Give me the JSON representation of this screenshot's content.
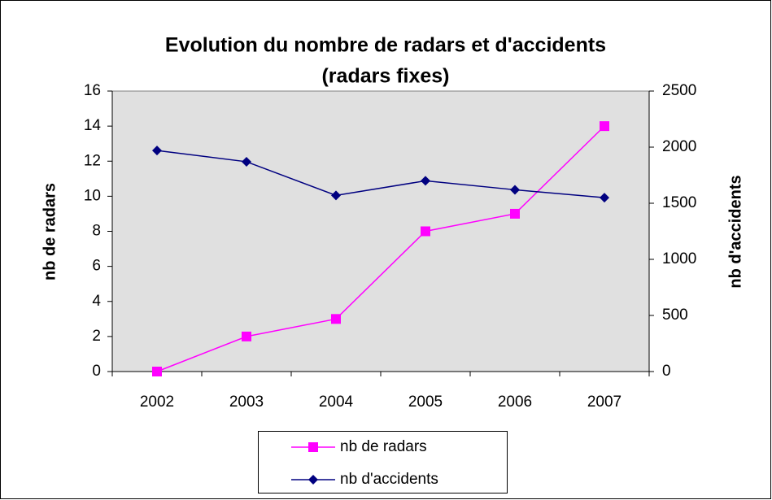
{
  "chart_data": {
    "type": "line",
    "title": [
      "Evolution du nombre de radars et d'accidents",
      "(radars fixes)"
    ],
    "ylabel": "nb de radars",
    "y2label": "nb d'accidents",
    "categories": [
      "2002",
      "2003",
      "2004",
      "2005",
      "2006",
      "2007"
    ],
    "ylim": [
      0,
      16
    ],
    "yticks": [
      0,
      2,
      4,
      6,
      8,
      10,
      12,
      14,
      16
    ],
    "y2lim": [
      0,
      2500
    ],
    "y2ticks": [
      0,
      500,
      1000,
      1500,
      2000,
      2500
    ],
    "series": [
      {
        "name": "nb de radars",
        "color": "#ff00ff",
        "marker": "square",
        "values": [
          0,
          2,
          3,
          8,
          9,
          14
        ]
      },
      {
        "name": "nb d'accidents",
        "color": "#000080",
        "marker": "diamond",
        "axis": "y2",
        "values": [
          1970,
          1870,
          1570,
          1700,
          1620,
          1550
        ]
      }
    ]
  }
}
